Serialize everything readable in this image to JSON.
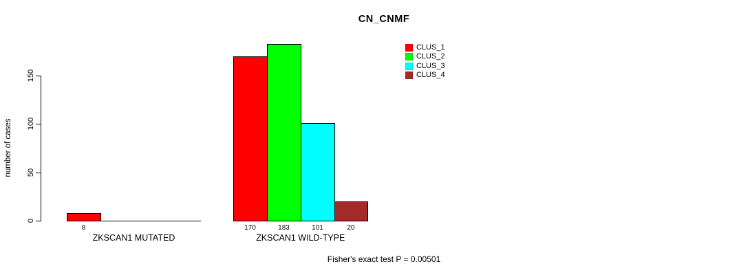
{
  "chart_data": {
    "type": "bar",
    "title": "CN_CNMF",
    "ylabel": "number of cases",
    "yticks": [
      0,
      50,
      100,
      150
    ],
    "axis_range": [
      0,
      150
    ],
    "grid": false,
    "legend_position": "top-right",
    "groups": [
      {
        "label": "ZKSCAN1 MUTATED",
        "values": [
          8,
          0,
          0,
          0
        ],
        "value_labels": [
          "8",
          "",
          "",
          ""
        ]
      },
      {
        "label": "ZKSCAN1 WILD-TYPE",
        "values": [
          170,
          183,
          101,
          20
        ],
        "value_labels": [
          "170",
          "183",
          "101",
          "20"
        ]
      }
    ],
    "series": [
      {
        "name": "CLUS_1",
        "color": "#FF0000",
        "values": [
          8,
          170
        ]
      },
      {
        "name": "CLUS_2",
        "color": "#00FF00",
        "values": [
          0,
          183
        ]
      },
      {
        "name": "CLUS_3",
        "color": "#00FFFF",
        "values": [
          0,
          101
        ]
      },
      {
        "name": "CLUS_4",
        "color": "#A52A2A",
        "values": [
          0,
          20
        ]
      }
    ],
    "legend": [
      {
        "label": "CLUS_1",
        "color": "#FF0000"
      },
      {
        "label": "CLUS_2",
        "color": "#00FF00"
      },
      {
        "label": "CLUS_3",
        "color": "#00FFFF"
      },
      {
        "label": "CLUS_4",
        "color": "#A52A2A"
      }
    ],
    "footer": "Fisher's exact test P = 0.00501"
  }
}
